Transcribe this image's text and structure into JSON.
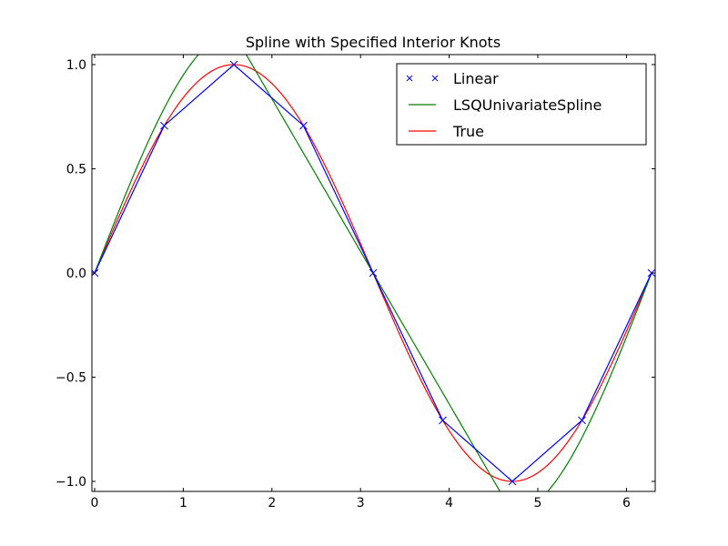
{
  "chart_data": {
    "type": "line",
    "title": "Spline with Specified Interior Knots",
    "xlabel": "",
    "ylabel": "",
    "xlim": [
      -0.03,
      6.33
    ],
    "ylim": [
      -1.05,
      1.05
    ],
    "xticks": [
      "0",
      "1",
      "2",
      "3",
      "4",
      "5",
      "6"
    ],
    "yticks": [
      "−1.0",
      "−0.5",
      "0.0",
      "0.5",
      "1.0"
    ],
    "grid": false,
    "legend_position": "upper right",
    "series": [
      {
        "name": "Linear",
        "color": "#0000ff",
        "style": "line with x markers",
        "x": [
          0,
          0.785,
          1.571,
          2.356,
          3.142,
          3.927,
          4.712,
          5.498,
          6.283
        ],
        "y": [
          0,
          0.707,
          1.0,
          0.707,
          0,
          -0.707,
          -1.0,
          -0.707,
          0
        ]
      },
      {
        "name": "LSQUnivariateSpline",
        "color": "#008000",
        "style": "line",
        "knots_interior": [
          1.571,
          4.712
        ],
        "description": "least-squares cubic spline fit; overshoots to about ±1.15 near π/2 and 3π/2, near-linear between"
      },
      {
        "name": "True",
        "color": "#ff0000",
        "style": "line",
        "function": "sin(x)",
        "x_range": [
          0,
          6.283
        ]
      }
    ]
  },
  "legend": {
    "items": [
      {
        "label": "Linear"
      },
      {
        "label": "LSQUnivariateSpline"
      },
      {
        "label": "True"
      }
    ]
  }
}
